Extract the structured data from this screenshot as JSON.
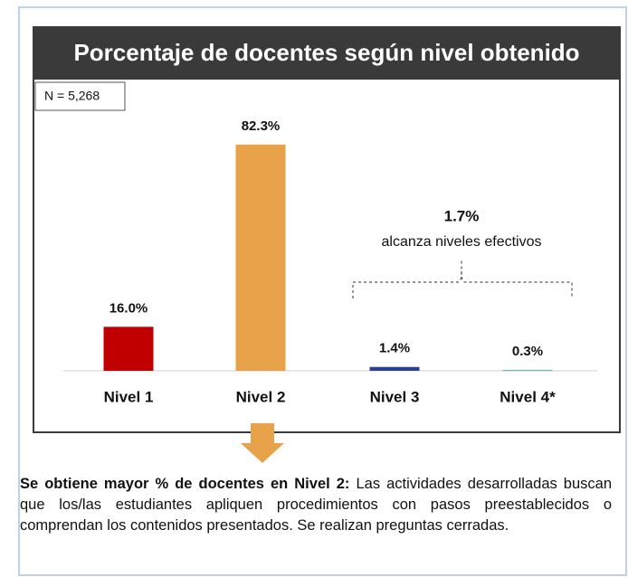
{
  "chart_data": {
    "type": "bar",
    "title": "Porcentaje de docentes según nivel obtenido",
    "note": "N = 5,268",
    "categories": [
      "Nivel 1",
      "Nivel 2",
      "Nivel 3",
      "Nivel 4*"
    ],
    "values": [
      16.0,
      82.3,
      1.4,
      0.3
    ],
    "value_labels": [
      "16.0%",
      "82.3%",
      "1.4%",
      "0.3%"
    ],
    "colors": [
      "#c00000",
      "#e8a24a",
      "#2e3f8c",
      "#4dbdb0"
    ],
    "ylim": [
      0,
      100
    ],
    "annotation": {
      "label": "1.7%",
      "text": "alcanza niveles efectivos"
    }
  },
  "conclusion": {
    "bold": "Se obtiene mayor % de docentes en Nivel 2:",
    "text": "Las actividades desarrolladas buscan que los/las estudiantes apliquen procedimientos con pasos preestablecidos o comprendan los contenidos presentados. Se realizan preguntas cerradas."
  }
}
